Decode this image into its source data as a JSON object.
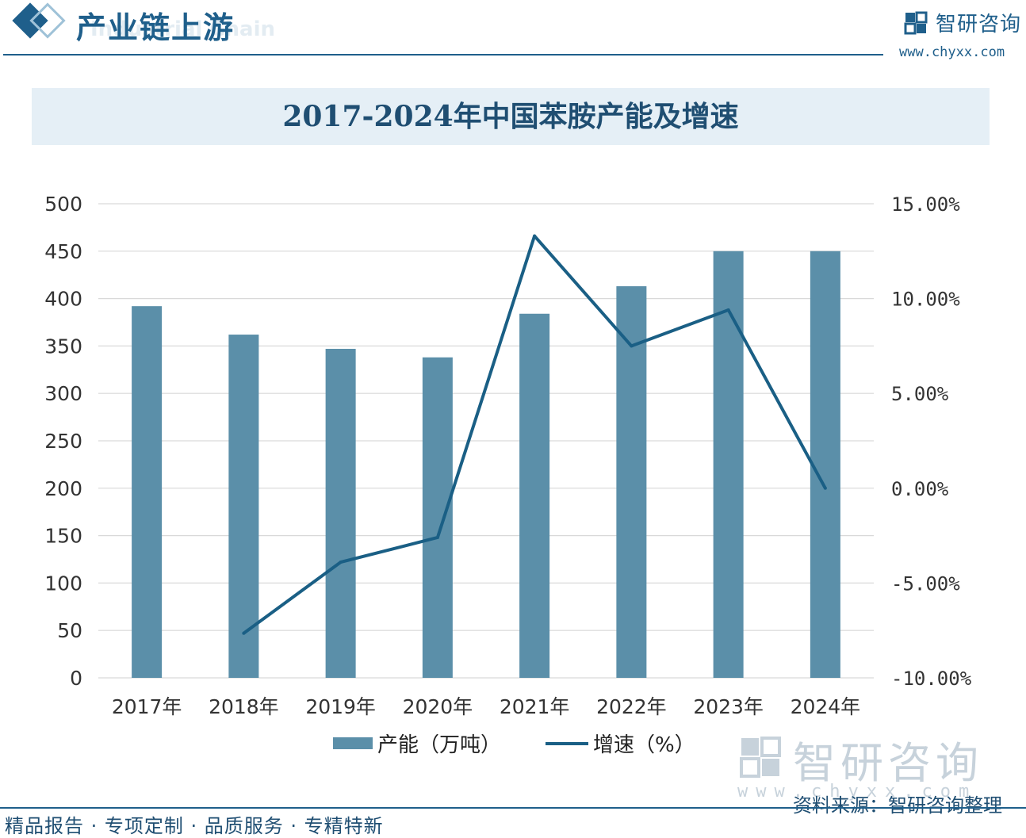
{
  "header": {
    "section_title": "产业链上游",
    "section_subtitle": "Industrial Chain",
    "brand_name": "智研咨询",
    "brand_url": "www.chyxx.com"
  },
  "footer": {
    "source": "资料来源：智研咨询整理",
    "slogan": "精品报告 · 专项定制 · 品质服务 · 专精特新",
    "watermark_name": "智研咨询",
    "watermark_url": "www.chyxx.com"
  },
  "colors": {
    "bar": "#5b8fa9",
    "line": "#1a5f85",
    "brand": "#1f5f8b",
    "grid": "#d9d9d9"
  },
  "chart_data": {
    "type": "bar",
    "title": "2017-2024年中国苯胺产能及增速",
    "categories": [
      "2017年",
      "2018年",
      "2019年",
      "2020年",
      "2021年",
      "2022年",
      "2023年",
      "2024年"
    ],
    "series": [
      {
        "name": "产能（万吨）",
        "type": "bar",
        "axis": "left",
        "values": [
          392,
          362,
          347,
          338,
          384,
          413,
          450,
          450
        ]
      },
      {
        "name": "增速（%）",
        "type": "line",
        "axis": "right",
        "values": [
          null,
          -7.65,
          -3.9,
          -2.6,
          13.3,
          7.5,
          9.4,
          0.0
        ]
      }
    ],
    "y_left": {
      "min": 0,
      "max": 500,
      "step": 50,
      "tick_labels": [
        "0",
        "50",
        "100",
        "150",
        "200",
        "250",
        "300",
        "350",
        "400",
        "450",
        "500"
      ]
    },
    "y_right": {
      "min": -10,
      "max": 15,
      "step": 5,
      "tick_labels": [
        "-10.00%",
        "-5.00%",
        "0.00%",
        "5.00%",
        "10.00%",
        "15.00%"
      ]
    },
    "grid": true,
    "legend_position": "bottom"
  }
}
